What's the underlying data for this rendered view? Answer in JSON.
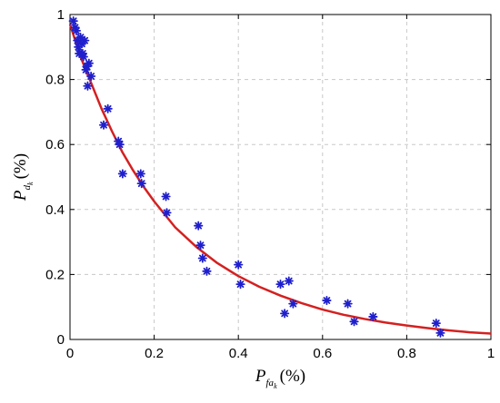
{
  "chart_data": {
    "type": "scatter",
    "title": "",
    "xlabel": {
      "main": "P",
      "sub": "fa",
      "subsub": "k",
      "unit": "(%)"
    },
    "ylabel": {
      "main": "P",
      "sub": "d",
      "subsub": "k",
      "unit": "(%)"
    },
    "xlim": [
      0,
      1
    ],
    "ylim": [
      0,
      1
    ],
    "xticks": [
      "0",
      "0.2",
      "0.4",
      "0.6",
      "0.8",
      "1"
    ],
    "yticks": [
      "0",
      "0.2",
      "0.4",
      "0.6",
      "0.8",
      "1"
    ],
    "xtick_values": [
      0,
      0.2,
      0.4,
      0.6,
      0.8,
      1
    ],
    "ytick_values": [
      0,
      0.2,
      0.4,
      0.6,
      0.8,
      1
    ],
    "grid": true,
    "series": [
      {
        "kind": "points",
        "marker": "asterisk",
        "color": "#1f1fcc",
        "x": [
          0.008,
          0.012,
          0.015,
          0.018,
          0.02,
          0.022,
          0.025,
          0.028,
          0.03,
          0.032,
          0.035,
          0.038,
          0.04,
          0.042,
          0.045,
          0.05,
          0.08,
          0.09,
          0.115,
          0.118,
          0.125,
          0.168,
          0.17,
          0.228,
          0.23,
          0.305,
          0.31,
          0.315,
          0.325,
          0.4,
          0.405,
          0.5,
          0.51,
          0.52,
          0.53,
          0.61,
          0.66,
          0.675,
          0.72,
          0.87,
          0.88
        ],
        "y": [
          0.98,
          0.96,
          0.95,
          0.92,
          0.9,
          0.88,
          0.93,
          0.91,
          0.88,
          0.87,
          0.92,
          0.83,
          0.84,
          0.78,
          0.85,
          0.81,
          0.66,
          0.71,
          0.61,
          0.6,
          0.51,
          0.51,
          0.48,
          0.44,
          0.39,
          0.35,
          0.29,
          0.25,
          0.21,
          0.23,
          0.17,
          0.17,
          0.08,
          0.18,
          0.11,
          0.12,
          0.11,
          0.055,
          0.07,
          0.05,
          0.02
        ]
      },
      {
        "kind": "curve",
        "color": "#d42020",
        "x": [
          0,
          0.025,
          0.05,
          0.075,
          0.1,
          0.125,
          0.15,
          0.175,
          0.2,
          0.25,
          0.3,
          0.35,
          0.4,
          0.45,
          0.5,
          0.55,
          0.6,
          0.65,
          0.7,
          0.75,
          0.8,
          0.85,
          0.9,
          0.95,
          1.0
        ],
        "y": [
          0.97,
          0.87,
          0.79,
          0.71,
          0.64,
          0.575,
          0.52,
          0.47,
          0.425,
          0.345,
          0.285,
          0.235,
          0.195,
          0.162,
          0.135,
          0.112,
          0.092,
          0.076,
          0.063,
          0.052,
          0.043,
          0.035,
          0.028,
          0.022,
          0.018
        ]
      }
    ]
  }
}
